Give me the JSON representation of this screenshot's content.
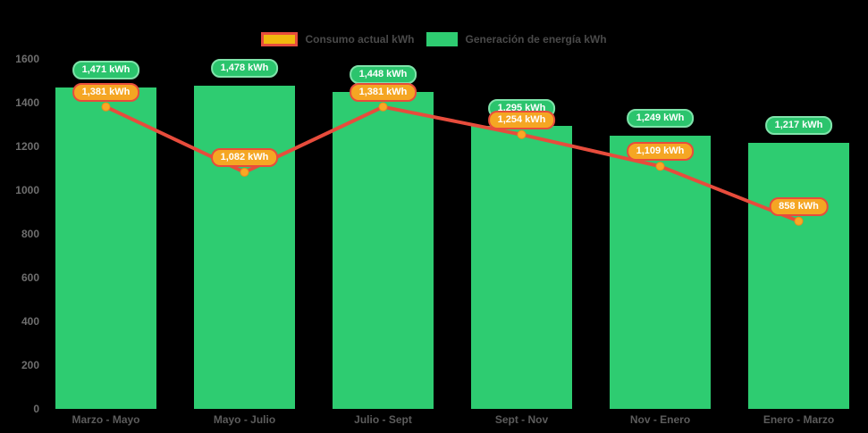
{
  "legend": {
    "items": [
      {
        "label": "Consumo actual kWh",
        "swatch_fill": "#f1b70e",
        "swatch_border": "#e74c3c",
        "series_type": "line"
      },
      {
        "label": "Generación de energía kWh",
        "swatch_fill": "#2ecc71",
        "series_type": "bar"
      }
    ],
    "position": "top"
  },
  "colors": {
    "background": "#000000",
    "bar_green": "#2ecc71",
    "line_red": "#e74c3c",
    "point_orange": "#f9a825",
    "point_ring": "#ef8a1c",
    "badge_green_fill": "#2bc46d",
    "badge_green_border": "#7fe3aa",
    "badge_orange_fill": "#f5a623",
    "badge_orange_border": "#e74c3c",
    "axis_text": "#6e6e6e",
    "x_label_text": "#5c5c5c",
    "legend_text": "#4a4a4a",
    "badge_text": "#ffffff"
  },
  "chart_data": {
    "type": "bar",
    "subtype": "bar-line-combo",
    "categories": [
      "Marzo - Mayo",
      "Mayo - Julio",
      "Julio - Sept",
      "Sept - Nov",
      "Nov - Enero",
      "Enero - Marzo"
    ],
    "series": [
      {
        "name": "Generación de energía kWh",
        "type": "bar",
        "color": "#2ecc71",
        "values": [
          1471,
          1478,
          1448,
          1295,
          1249,
          1217
        ],
        "labels": [
          "1,471 kWh",
          "1,478 kWh",
          "1,448 kWh",
          "1,295 kWh",
          "1,249 kWh",
          "1,217 kWh"
        ]
      },
      {
        "name": "Consumo actual kWh",
        "type": "line",
        "color": "#e74c3c",
        "point_color": "#f9a825",
        "values": [
          1381,
          1082,
          1381,
          1254,
          1109,
          858
        ],
        "labels": [
          "1,381 kWh",
          "1,082 kWh",
          "1,381 kWh",
          "1,254 kWh",
          "1,109 kWh",
          "858 kWh"
        ]
      }
    ],
    "title": "",
    "xlabel": "",
    "ylabel": "",
    "ylim": [
      0,
      1600
    ],
    "y_ticks": [
      0,
      200,
      400,
      600,
      800,
      1000,
      1200,
      1400,
      1600
    ],
    "grid": false,
    "legend_position": "top",
    "unit": "kWh"
  }
}
